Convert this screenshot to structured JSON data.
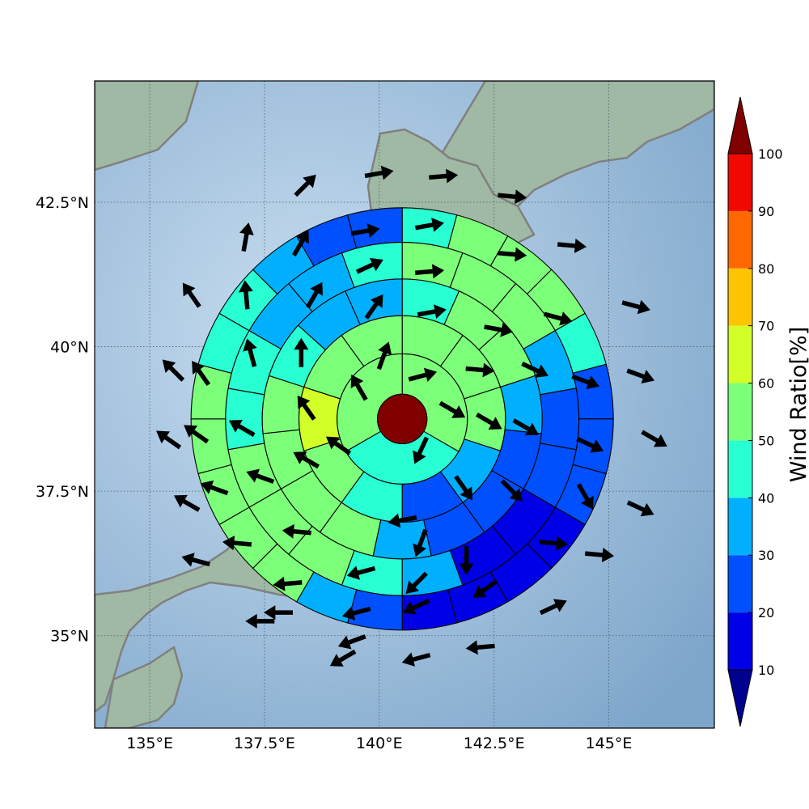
{
  "chart_data": {
    "type": "heatmap",
    "subtype": "polar sector wind-ratio map with direction arrows",
    "title": "",
    "xlabel": "",
    "ylabel": "",
    "x_ticks": [
      "135°E",
      "137.5°E",
      "140°E",
      "142.5°E",
      "145°E"
    ],
    "x_tick_values": [
      135,
      137.5,
      140,
      142.5,
      145
    ],
    "y_ticks": [
      "42.5°N",
      "40°N",
      "37.5°N",
      "35°N"
    ],
    "y_tick_values": [
      42.5,
      40,
      37.5,
      35
    ],
    "xlim": [
      133.8,
      147.3
    ],
    "ylim": [
      33.4,
      44.6
    ],
    "grid": true,
    "center": {
      "lon": 140.5,
      "lat": 38.75
    },
    "center_color": "#800000",
    "ring_radii_deg": [
      0.54,
      1.42,
      2.25,
      3.05,
      3.85,
      4.6
    ],
    "rings": [
      {
        "ring": 1,
        "sector_deg": 120,
        "values": [
          55,
          45,
          55
        ],
        "arrows_deg": [
          20,
          250,
          155
        ]
      },
      {
        "ring": 2,
        "sector_deg": 36,
        "values": [
          55,
          55,
          55,
          35,
          20,
          45,
          50,
          60,
          55,
          55
        ],
        "arrows_deg": [
          35,
          80,
          100,
          115,
          130,
          225,
          265,
          300,
          325,
          345
        ]
      },
      {
        "ring": 3,
        "sector_deg": 24,
        "values": [
          45,
          55,
          55,
          35,
          20,
          20,
          20,
          35,
          55,
          55,
          55,
          55,
          45,
          35,
          35
        ],
        "arrows_deg": [
          50,
          80,
          95,
          110,
          120,
          135,
          155,
          195,
          240,
          265,
          275,
          290,
          315,
          350,
          15
        ]
      },
      {
        "ring": 4,
        "sector_deg": 20,
        "values": [
          55,
          55,
          55,
          35,
          25,
          25,
          15,
          15,
          35,
          45,
          55,
          55,
          55,
          45,
          45,
          35,
          35,
          45
        ],
        "arrows_deg": [
          40,
          70,
          80,
          100,
          110,
          120,
          140,
          160,
          205,
          225,
          250,
          265,
          275,
          290,
          300,
          340,
          10,
          25
        ]
      },
      {
        "ring": 5,
        "sector_deg": 15,
        "values": [
          45,
          55,
          55,
          55,
          45,
          25,
          25,
          25,
          15,
          15,
          15,
          15,
          25,
          35,
          55,
          55,
          55,
          55,
          55,
          45,
          45,
          35,
          25,
          25
        ],
        "arrows_deg": [
          30,
          65,
          80,
          90,
          100,
          105,
          110,
          115,
          120,
          130,
          150,
          170,
          195,
          220,
          245,
          255,
          270,
          285,
          300,
          315,
          330,
          350,
          10,
          20
        ]
      },
      {
        "ring": 6,
        "sector_deg": 15,
        "values": [
          45,
          55,
          65,
          45,
          25,
          25,
          25,
          15,
          5,
          15,
          15,
          15,
          15,
          35,
          45,
          45,
          35,
          35,
          35,
          35,
          15,
          15,
          25,
          35
        ],
        "arrows_deg": [
          40,
          70,
          90,
          100,
          110,
          115,
          120,
          130,
          145,
          155,
          165,
          170,
          185,
          215,
          240,
          255,
          265,
          280,
          295,
          305,
          320,
          340,
          10,
          20
        ]
      }
    ],
    "arrows": [
      {
        "lon": 140.1,
        "lat": 39.85,
        "dir": 20
      },
      {
        "lon": 140.9,
        "lat": 38.2,
        "dir": 205
      },
      {
        "lon": 139.1,
        "lat": 38.3,
        "dir": 305
      },
      {
        "lon": 139.55,
        "lat": 39.3,
        "dir": 330
      },
      {
        "lon": 140.95,
        "lat": 39.5,
        "dir": 75
      },
      {
        "lon": 141.6,
        "lat": 38.9,
        "dir": 120
      },
      {
        "lon": 139.9,
        "lat": 40.7,
        "dir": 35
      },
      {
        "lon": 140.5,
        "lat": 37.0,
        "dir": 260
      },
      {
        "lon": 138.4,
        "lat": 38.05,
        "dir": 300
      },
      {
        "lon": 138.4,
        "lat": 38.95,
        "dir": 325
      },
      {
        "lon": 141.15,
        "lat": 40.6,
        "dir": 80
      },
      {
        "lon": 142.2,
        "lat": 39.6,
        "dir": 95
      },
      {
        "lon": 142.4,
        "lat": 38.7,
        "dir": 120
      },
      {
        "lon": 141.85,
        "lat": 37.55,
        "dir": 145
      },
      {
        "lon": 140.9,
        "lat": 36.6,
        "dir": 200
      },
      {
        "lon": 139.6,
        "lat": 36.1,
        "dir": 255
      },
      {
        "lon": 138.2,
        "lat": 36.8,
        "dir": 275
      },
      {
        "lon": 137.4,
        "lat": 37.75,
        "dir": 290
      },
      {
        "lon": 137.0,
        "lat": 38.6,
        "dir": 300
      },
      {
        "lon": 137.2,
        "lat": 39.9,
        "dir": 345
      },
      {
        "lon": 138.3,
        "lat": 39.9,
        "dir": 0
      },
      {
        "lon": 138.6,
        "lat": 40.9,
        "dir": 30
      },
      {
        "lon": 139.8,
        "lat": 41.4,
        "dir": 65
      },
      {
        "lon": 141.1,
        "lat": 41.3,
        "dir": 85
      },
      {
        "lon": 142.6,
        "lat": 40.3,
        "dir": 100
      },
      {
        "lon": 143.4,
        "lat": 39.6,
        "dir": 115
      },
      {
        "lon": 143.2,
        "lat": 38.6,
        "dir": 120
      },
      {
        "lon": 142.9,
        "lat": 37.5,
        "dir": 135
      },
      {
        "lon": 141.9,
        "lat": 36.3,
        "dir": 180
      },
      {
        "lon": 140.8,
        "lat": 35.9,
        "dir": 225
      },
      {
        "lon": 139.5,
        "lat": 35.4,
        "dir": 255
      },
      {
        "lon": 138.0,
        "lat": 35.9,
        "dir": 265
      },
      {
        "lon": 136.9,
        "lat": 36.6,
        "dir": 275
      },
      {
        "lon": 136.4,
        "lat": 37.55,
        "dir": 290
      },
      {
        "lon": 136.0,
        "lat": 38.5,
        "dir": 305
      },
      {
        "lon": 136.1,
        "lat": 39.55,
        "dir": 325
      },
      {
        "lon": 137.1,
        "lat": 40.9,
        "dir": 355
      },
      {
        "lon": 138.3,
        "lat": 41.8,
        "dir": 30
      },
      {
        "lon": 139.7,
        "lat": 42.0,
        "dir": 80
      },
      {
        "lon": 141.1,
        "lat": 42.1,
        "dir": 80
      },
      {
        "lon": 142.9,
        "lat": 41.6,
        "dir": 95
      },
      {
        "lon": 143.9,
        "lat": 40.5,
        "dir": 105
      },
      {
        "lon": 144.5,
        "lat": 39.4,
        "dir": 110
      },
      {
        "lon": 144.6,
        "lat": 38.3,
        "dir": 115
      },
      {
        "lon": 144.5,
        "lat": 37.4,
        "dir": 150
      },
      {
        "lon": 143.8,
        "lat": 36.6,
        "dir": 95
      },
      {
        "lon": 142.3,
        "lat": 35.8,
        "dir": 235
      },
      {
        "lon": 140.8,
        "lat": 35.5,
        "dir": 245
      },
      {
        "lon": 139.4,
        "lat": 34.9,
        "dir": 250
      },
      {
        "lon": 137.8,
        "lat": 35.4,
        "dir": 270
      },
      {
        "lon": 136.0,
        "lat": 36.3,
        "dir": 285
      },
      {
        "lon": 135.8,
        "lat": 37.3,
        "dir": 300
      },
      {
        "lon": 135.4,
        "lat": 38.4,
        "dir": 305
      },
      {
        "lon": 135.5,
        "lat": 39.6,
        "dir": 315
      },
      {
        "lon": 135.9,
        "lat": 40.9,
        "dir": 325
      },
      {
        "lon": 137.1,
        "lat": 41.9,
        "dir": 10
      },
      {
        "lon": 138.4,
        "lat": 42.8,
        "dir": 45
      },
      {
        "lon": 140.0,
        "lat": 43.0,
        "dir": 80
      },
      {
        "lon": 141.4,
        "lat": 42.95,
        "dir": 85
      },
      {
        "lon": 142.9,
        "lat": 42.6,
        "dir": 95
      },
      {
        "lon": 144.2,
        "lat": 41.75,
        "dir": 95
      },
      {
        "lon": 145.6,
        "lat": 40.7,
        "dir": 105
      },
      {
        "lon": 145.7,
        "lat": 39.5,
        "dir": 110
      },
      {
        "lon": 146.0,
        "lat": 38.4,
        "dir": 120
      },
      {
        "lon": 145.7,
        "lat": 37.2,
        "dir": 115
      },
      {
        "lon": 144.8,
        "lat": 36.4,
        "dir": 95
      },
      {
        "lon": 143.8,
        "lat": 35.5,
        "dir": 65
      },
      {
        "lon": 142.2,
        "lat": 34.8,
        "dir": 265
      },
      {
        "lon": 140.8,
        "lat": 34.6,
        "dir": 255
      },
      {
        "lon": 139.2,
        "lat": 34.6,
        "dir": 240
      },
      {
        "lon": 137.4,
        "lat": 35.25,
        "dir": 270
      }
    ],
    "colorbar": {
      "label": "Wind Ratio[%]",
      "ticks": [
        "10",
        "20",
        "30",
        "40",
        "50",
        "60",
        "70",
        "80",
        "90",
        "100"
      ],
      "range": [
        10,
        100
      ],
      "extend": "both",
      "levels": [
        {
          "from": 10,
          "to": 20,
          "color": "#0000e6"
        },
        {
          "from": 20,
          "to": 30,
          "color": "#0050ff"
        },
        {
          "from": 30,
          "to": 40,
          "color": "#00b0ff"
        },
        {
          "from": 40,
          "to": 50,
          "color": "#28ffd2"
        },
        {
          "from": 50,
          "to": 60,
          "color": "#7cff79"
        },
        {
          "from": 60,
          "to": 70,
          "color": "#d2ff28"
        },
        {
          "from": 70,
          "to": 80,
          "color": "#ffc400"
        },
        {
          "from": 80,
          "to": 90,
          "color": "#ff6800"
        },
        {
          "from": 90,
          "to": 100,
          "color": "#f10800"
        }
      ],
      "under_color": "#00008f",
      "over_color": "#800000"
    },
    "basemap": {
      "sea_color": "#8fb3d4",
      "land_color": "#9fb9a4",
      "coast_color": "#808080"
    }
  }
}
